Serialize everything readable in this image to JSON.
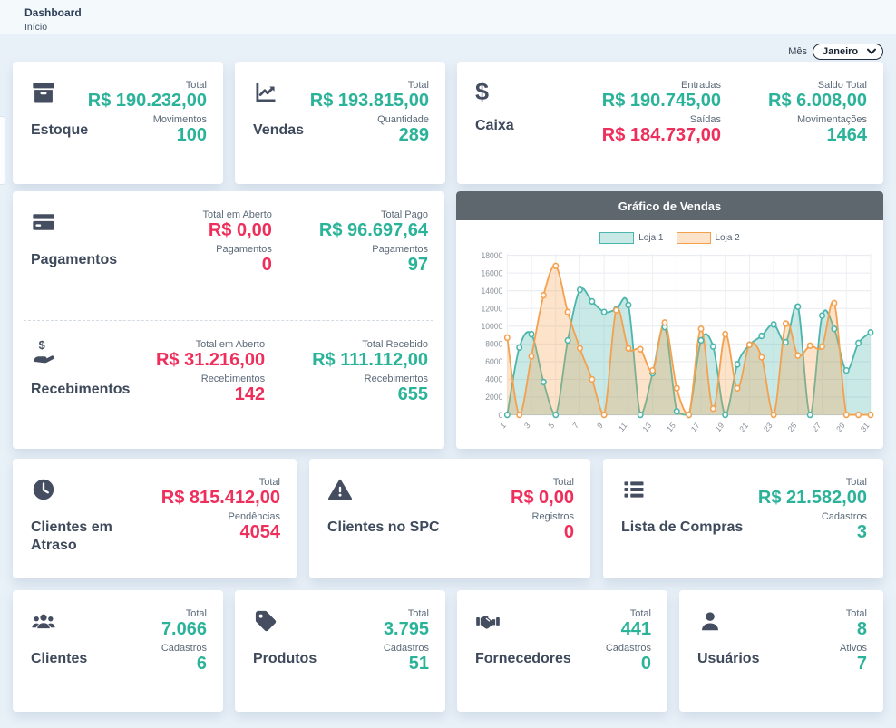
{
  "page": {
    "title": "Dashboard",
    "breadcrumb": "Início"
  },
  "month_filter": {
    "label": "Mês",
    "value": "Janeiro"
  },
  "colors": {
    "teal": "#2bb39a",
    "red": "#ee2e5b",
    "dark_text": "#3e4a5b",
    "icon": "#454e60",
    "chart_header_bg": "#5e666e",
    "page_bg": "#e9f1f8"
  },
  "cards": {
    "estoque": {
      "title": "Estoque",
      "icon": "box-icon",
      "stats": [
        {
          "label": "Total",
          "value": "R$ 190.232,00",
          "color": "teal"
        },
        {
          "label": "Movimentos",
          "value": "100",
          "color": "teal"
        }
      ]
    },
    "vendas": {
      "title": "Vendas",
      "icon": "chart-line-icon",
      "stats": [
        {
          "label": "Total",
          "value": "R$ 193.815,00",
          "color": "teal"
        },
        {
          "label": "Quantidade",
          "value": "289",
          "color": "teal"
        }
      ]
    },
    "caixa": {
      "title": "Caixa",
      "icon": "dollar-icon",
      "col1": [
        {
          "label": "Entradas",
          "value": "R$ 190.745,00",
          "color": "teal"
        },
        {
          "label": "Saídas",
          "value": "R$ 184.737,00",
          "color": "red"
        }
      ],
      "col2": [
        {
          "label": "Saldo Total",
          "value": "R$ 6.008,00",
          "color": "teal"
        },
        {
          "label": "Movimentações",
          "value": "1464",
          "color": "teal"
        }
      ]
    },
    "pagamentos": {
      "title": "Pagamentos",
      "icon": "credit-card-icon",
      "col1": [
        {
          "label": "Total em Aberto",
          "value": "R$ 0,00",
          "color": "red"
        },
        {
          "label": "Pagamentos",
          "value": "0",
          "color": "red"
        }
      ],
      "col2": [
        {
          "label": "Total Pago",
          "value": "R$ 96.697,64",
          "color": "teal"
        },
        {
          "label": "Pagamentos",
          "value": "97",
          "color": "teal"
        }
      ]
    },
    "recebimentos": {
      "title": "Recebimentos",
      "icon": "hand-holding-dollar-icon",
      "col1": [
        {
          "label": "Total em Aberto",
          "value": "R$ 31.216,00",
          "color": "red"
        },
        {
          "label": "Recebimentos",
          "value": "142",
          "color": "red"
        }
      ],
      "col2": [
        {
          "label": "Total Recebido",
          "value": "R$ 111.112,00",
          "color": "teal"
        },
        {
          "label": "Recebimentos",
          "value": "655",
          "color": "teal"
        }
      ]
    },
    "clientes_em_atraso": {
      "title": "Clientes em Atraso",
      "icon": "clock-icon",
      "stats": [
        {
          "label": "Total",
          "value": "R$ 815.412,00",
          "color": "red"
        },
        {
          "label": "Pendências",
          "value": "4054",
          "color": "red"
        }
      ]
    },
    "clientes_no_spc": {
      "title": "Clientes no SPC",
      "icon": "warning-icon",
      "stats": [
        {
          "label": "Total",
          "value": "R$ 0,00",
          "color": "red"
        },
        {
          "label": "Registros",
          "value": "0",
          "color": "red"
        }
      ]
    },
    "lista_de_compras": {
      "title": "Lista de Compras",
      "icon": "list-icon",
      "stats": [
        {
          "label": "Total",
          "value": "R$ 21.582,00",
          "color": "teal"
        },
        {
          "label": "Cadastros",
          "value": "3",
          "color": "teal"
        }
      ]
    },
    "clientes": {
      "title": "Clientes",
      "icon": "users-icon",
      "stats": [
        {
          "label": "Total",
          "value": "7.066",
          "color": "teal"
        },
        {
          "label": "Cadastros",
          "value": "6",
          "color": "teal"
        }
      ]
    },
    "produtos": {
      "title": "Produtos",
      "icon": "tag-icon",
      "stats": [
        {
          "label": "Total",
          "value": "3.795",
          "color": "teal"
        },
        {
          "label": "Cadastros",
          "value": "51",
          "color": "teal"
        }
      ]
    },
    "fornecedores": {
      "title": "Fornecedores",
      "icon": "handshake-icon",
      "stats": [
        {
          "label": "Total",
          "value": "441",
          "color": "teal"
        },
        {
          "label": "Cadastros",
          "value": "0",
          "color": "teal"
        }
      ]
    },
    "usuarios": {
      "title": "Usuários",
      "icon": "user-icon",
      "stats": [
        {
          "label": "Total",
          "value": "8",
          "color": "teal"
        },
        {
          "label": "Ativos",
          "value": "7",
          "color": "teal"
        }
      ]
    }
  },
  "chart_data": {
    "type": "area",
    "title": "Gráfico de Vendas",
    "x": [
      1,
      2,
      3,
      4,
      5,
      6,
      7,
      8,
      9,
      10,
      11,
      12,
      13,
      14,
      15,
      16,
      17,
      18,
      19,
      20,
      21,
      22,
      23,
      24,
      25,
      26,
      27,
      28,
      29,
      30,
      31
    ],
    "x_tick_labels": [
      "1",
      "3",
      "5",
      "7",
      "9",
      "11",
      "13",
      "15",
      "17",
      "19",
      "21",
      "23",
      "25",
      "27",
      "29",
      "31"
    ],
    "ylim": [
      0,
      18000
    ],
    "ytick_step": 2000,
    "grid": true,
    "legend_position": "top",
    "series": [
      {
        "name": "Loja 1",
        "color": "#4db6ac",
        "fill": "rgba(77,182,172,0.30)",
        "values": [
          0,
          7600,
          9100,
          3700,
          0,
          8400,
          14100,
          12800,
          11600,
          11900,
          12400,
          0,
          4700,
          9900,
          400,
          0,
          8400,
          7700,
          0,
          5700,
          7900,
          8900,
          10200,
          8200,
          12200,
          0,
          11200,
          9700,
          5000,
          8100,
          9300
        ]
      },
      {
        "name": "Loja 2",
        "color": "#f4a14f",
        "fill": "rgba(244,161,79,0.30)",
        "values": [
          8700,
          0,
          6600,
          13500,
          16800,
          11600,
          7500,
          4000,
          0,
          11800,
          7500,
          7400,
          5000,
          10400,
          3000,
          0,
          9700,
          700,
          9100,
          3000,
          7900,
          6500,
          0,
          10300,
          6700,
          7800,
          7700,
          12600,
          0,
          0,
          0
        ]
      }
    ]
  }
}
